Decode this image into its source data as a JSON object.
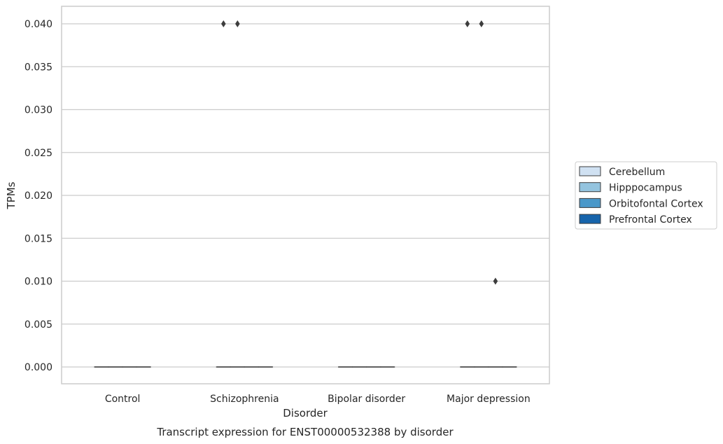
{
  "chart_data": {
    "type": "box",
    "title": "",
    "caption": "Transcript expression for ENST00000532388 by disorder",
    "xlabel": "Disorder",
    "ylabel": "TPMs",
    "ylim": [
      -0.002,
      0.042
    ],
    "yticks": [
      0.0,
      0.005,
      0.01,
      0.015,
      0.02,
      0.025,
      0.03,
      0.035,
      0.04
    ],
    "ytick_labels": [
      "0.000",
      "0.005",
      "0.010",
      "0.015",
      "0.020",
      "0.025",
      "0.030",
      "0.035",
      "0.040"
    ],
    "grid": "horizontal",
    "legend_position": "outside-right",
    "categories": [
      "Control",
      "Schizophrenia",
      "Bipolar disorder",
      "Major depression"
    ],
    "series": [
      {
        "name": "Cerebellum",
        "color": "#d0e1f2",
        "box": [
          [
            0,
            0,
            0,
            0,
            0
          ],
          [
            0,
            0,
            0,
            0,
            0
          ],
          [
            0,
            0,
            0,
            0,
            0
          ],
          [
            0,
            0,
            0,
            0,
            0
          ]
        ],
        "outliers": [
          [],
          [
            0.04
          ],
          [],
          [
            0.04
          ]
        ]
      },
      {
        "name": "Hipppocampus",
        "color": "#94c4df",
        "box": [
          [
            0,
            0,
            0,
            0,
            0
          ],
          [
            0,
            0,
            0,
            0,
            0
          ],
          [
            0,
            0,
            0,
            0,
            0
          ],
          [
            0,
            0,
            0,
            0,
            0
          ]
        ],
        "outliers": [
          [],
          [
            0.04
          ],
          [],
          [
            0.04
          ]
        ]
      },
      {
        "name": "Orbitofontal Cortex",
        "color": "#4a98c9",
        "box": [
          [
            0,
            0,
            0,
            0,
            0
          ],
          [
            0,
            0,
            0,
            0,
            0
          ],
          [
            0,
            0,
            0,
            0,
            0
          ],
          [
            0,
            0,
            0,
            0,
            0
          ]
        ],
        "outliers": [
          [],
          [],
          [],
          [
            0.01
          ]
        ]
      },
      {
        "name": "Prefrontal Cortex",
        "color": "#1764ab",
        "box": [
          [
            0,
            0,
            0,
            0,
            0
          ],
          [
            0,
            0,
            0,
            0,
            0
          ],
          [
            0,
            0,
            0,
            0,
            0
          ],
          [
            0,
            0,
            0,
            0,
            0
          ]
        ],
        "outliers": [
          [],
          [],
          [],
          []
        ]
      }
    ]
  }
}
